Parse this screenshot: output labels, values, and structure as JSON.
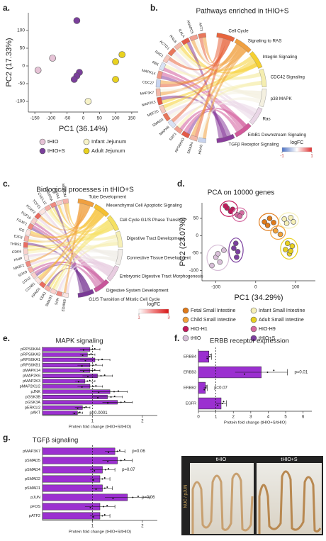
{
  "chart_data": [
    {
      "type": "scatter",
      "panel": "a.",
      "xlabel": "PC1 (36.14%)",
      "ylabel": "PC2 (17.33%)",
      "xlim": [
        -170,
        170
      ],
      "ylim": [
        -130,
        150
      ],
      "xticks": [
        -150,
        -100,
        -50,
        0,
        50,
        100,
        150
      ],
      "yticks": [
        -100,
        -50,
        0,
        50,
        100
      ],
      "series": [
        {
          "name": "tHIO",
          "color": "#e6c3d6",
          "x": [
            -140,
            -95
          ],
          "y": [
            -12,
            22
          ]
        },
        {
          "name": "Infant Jejunum",
          "color": "#f7f3c8",
          "x": [
            15
          ],
          "y": [
            -100
          ]
        },
        {
          "name": "tHIO+S",
          "color": "#7a3f9b",
          "x": [
            -20,
            -12,
            -20,
            -28
          ],
          "y": [
            128,
            -18,
            -28,
            -38
          ]
        },
        {
          "name": "Adult Jejunum",
          "color": "#e9d21f",
          "x": [
            120,
            100,
            100
          ],
          "y": [
            32,
            12,
            -38
          ]
        }
      ]
    },
    {
      "type": "chord",
      "panel": "b.",
      "title": "Pathways enriched in tHIO+S",
      "genes": [
        "AKT3",
        "ANAPC5",
        "RALA",
        "RALB",
        "ACTG1",
        "RAC1",
        "RB1",
        "MAPK14",
        "CDC27",
        "MAP3K7",
        "MAP2K3",
        "MEF2C",
        "SMAD3",
        "MAPK8",
        "RAF1",
        "RPS6KA3",
        "SMAD4",
        "HRAS"
      ],
      "gene_colors": [
        "#e8765a",
        "#f0a090",
        "#e45a48",
        "#f3b8a8",
        "#e8765a",
        "#f6c8bc",
        "#d9e2f4",
        "#ef9a86",
        "#c8d4ef",
        "#f3b8a8",
        "#e45a48",
        "#f6c8bc",
        "#e8765a",
        "#d9e2f4",
        "#f0a090",
        "#e45a48",
        "#f3b8a8",
        "#c8d4ef"
      ],
      "pathways": [
        "Cell Cycle",
        "Signaling to RAS",
        "Integrin Signaling",
        "CDC42 Signaling",
        "p38 MAPK",
        "Ras",
        "ErbB1 Downstream Signaling",
        "TGFβ Receptor Signaling"
      ],
      "pathway_colors": [
        "#e8643c",
        "#f0a040",
        "#f5d030",
        "#f5eeb0",
        "#f4f0e0",
        "#e9d6e6",
        "#d25a9a",
        "#8a3e9c"
      ],
      "legend": {
        "title": "logFC",
        "ticks": [
          -1,
          1
        ],
        "colors": [
          "#4f73c4",
          "#ffffff",
          "#e03030"
        ]
      }
    },
    {
      "type": "chord",
      "panel": "c.",
      "title": "Biological processes in tHIO+S",
      "genes": [
        "MECOM",
        "GATA4",
        "PDGFRA",
        "CXCL12",
        "TCF21",
        "FOXF2",
        "FGF10",
        "FOXF1",
        "ID2",
        "E2F8",
        "THBS1",
        "CDK6",
        "HHIP",
        "NR2F2",
        "SOX9",
        "CDX2",
        "CCNB1",
        "HAND1",
        "CDK1",
        "SMAD3",
        "SHH",
        "EDNRB"
      ],
      "gene_colors": [
        "#f5b0a8",
        "#f8d0cc",
        "#ee8a80",
        "#f5b0a8",
        "#fbe4e1",
        "#e96b60",
        "#f8d0cc",
        "#ee8a80",
        "#fbe4e1",
        "#f5b0a8",
        "#e96b60",
        "#f8d0cc",
        "#fbe4e1",
        "#ee8a80",
        "#f5b0a8",
        "#f8d0cc",
        "#fbe4e1",
        "#e96b60",
        "#f5b0a8",
        "#f8d0cc",
        "#ee8a80",
        "#fbe4e1"
      ],
      "pathways": [
        "Tube Development",
        "Mesenchymal Cell Apoptotic Signaling",
        "Cell Cycle G1/S Phase Transition",
        "Digestive Tract Development",
        "Connective Tissue Development",
        "Embryonic Digestive Tract Morphogenesis",
        "Digestive System Development",
        "G1/S Transition of Mitotic Cell Cycle"
      ],
      "pathway_colors": [
        "#f0a040",
        "#f5c030",
        "#f5e060",
        "#f6efb5",
        "#f0ece8",
        "#e8cce0",
        "#c8559a",
        "#7a3a96"
      ],
      "legend": {
        "title": "logFC",
        "ticks": [
          1,
          3
        ],
        "colors": [
          "#ffffff",
          "#f08080",
          "#d81818"
        ]
      }
    },
    {
      "type": "scatter",
      "panel": "d.",
      "title": "PCA on 10000 genes",
      "xlabel": "PC1 (34.29%)",
      "ylabel": "PC2 (23.07%)",
      "ellipses": true,
      "xlim": [
        -135,
        150
      ],
      "ylim": [
        -130,
        95
      ],
      "xticks": [
        -100,
        0,
        100
      ],
      "yticks": [
        -100,
        -50,
        0,
        50
      ],
      "series": [
        {
          "name": "Fetal Small Intestine",
          "color": "#e07b1a",
          "x": [
            22,
            35,
            30,
            45
          ],
          "y": [
            40,
            50,
            30,
            38
          ]
        },
        {
          "name": "Infant Small Intestine",
          "color": "#f6f0b8",
          "x": [
            72,
            88,
            78,
            95
          ],
          "y": [
            48,
            52,
            36,
            40
          ]
        },
        {
          "name": "Child Small Intestine",
          "color": "#f2a23a",
          "x": [
            50,
            62
          ],
          "y": [
            14,
            4
          ]
        },
        {
          "name": "Adult Small Intestine",
          "color": "#e8d020",
          "x": [
            75,
            85,
            92,
            80,
            88
          ],
          "y": [
            -40,
            -52,
            -30,
            -22,
            -44
          ]
        },
        {
          "name": "HIO-H1",
          "color": "#c2185b",
          "x": [
            -72,
            -58,
            -63,
            -76
          ],
          "y": [
            80,
            76,
            70,
            86
          ]
        },
        {
          "name": "HIO-H9",
          "color": "#d46aa0",
          "x": [
            -35,
            -46,
            -40
          ],
          "y": [
            66,
            60,
            56
          ]
        },
        {
          "name": "tHIO",
          "color": "#d8bfd8",
          "x": [
            -110,
            -100,
            -90,
            -80,
            -95
          ],
          "y": [
            -86,
            -62,
            -76,
            -42,
            -52
          ]
        },
        {
          "name": "tHIO+S",
          "color": "#7b3f9e",
          "x": [
            -45,
            -50,
            -55,
            -48
          ],
          "y": [
            -46,
            -22,
            -36,
            -62
          ]
        }
      ]
    },
    {
      "type": "hbar",
      "panel": "e.",
      "title": "MAPK signaling",
      "xlabel": "Protein fold change (tHIO+S/tHIO)",
      "color": "#9b30d0",
      "xlim": [
        0,
        2.3
      ],
      "xticks": [
        1,
        2
      ],
      "reference_line": 1,
      "categories": [
        "pRPS6KA4",
        "pRPS6KA3",
        "pRPS6KA1",
        "pRPS6KB1",
        "pMAPK14",
        "pMAP2K6",
        "pMAP2K3",
        "pMAP2K1/2",
        "pJNK",
        "pGSK3B",
        "pGSK3A",
        "pERK1/2",
        "pAKT"
      ],
      "values": [
        0.95,
        0.9,
        1.05,
        0.95,
        0.95,
        1.1,
        0.85,
        0.95,
        1.35,
        1.3,
        1.5,
        0.8,
        0.7
      ],
      "errors": [
        0.2,
        0.15,
        0.3,
        0.25,
        0.2,
        0.3,
        0.2,
        0.25,
        0.35,
        0.3,
        0.3,
        0.15,
        0.1
      ],
      "annotations": [
        {
          "category": "pAKT",
          "text": "p<0.0001"
        }
      ]
    },
    {
      "type": "hbar",
      "panel": "f.",
      "title": "ERBB receptor expression",
      "xlabel": "Protein fold change (tHIO+S/tHIO)",
      "color": "#9b30d0",
      "xlim": [
        0,
        6.5
      ],
      "xticks": [
        0,
        1,
        2,
        3,
        4,
        5,
        6
      ],
      "reference_line": 1,
      "categories": [
        "ERBB4",
        "ERBB3",
        "ERBB2",
        "EGFR"
      ],
      "values": [
        0.6,
        3.6,
        0.4,
        1.3
      ],
      "errors": [
        0.15,
        1.5,
        0.1,
        0.3
      ],
      "annotations": [
        {
          "category": "ERBB3",
          "text": "p=0.01"
        },
        {
          "category": "ERBB2",
          "text": "p=0.07"
        }
      ]
    },
    {
      "type": "hbar",
      "panel": "g.",
      "title": "TGFβ signaling",
      "xlabel": "Protein fold change (tHIO+S/tHIO)",
      "color": "#9b30d0",
      "xlim": [
        0,
        2.3
      ],
      "xticks": [
        1,
        2
      ],
      "reference_line": 1,
      "categories": [
        "pMAP3K7",
        "pSMAD5",
        "pSMAD4",
        "pSMAD2",
        "pSMAD1",
        "pJUN",
        "pFOS",
        "pATF2"
      ],
      "values": [
        1.45,
        1.5,
        1.2,
        1.15,
        1.2,
        1.7,
        1.15,
        1.15
      ],
      "errors": [
        0.2,
        0.3,
        0.25,
        0.2,
        0.2,
        0.45,
        0.3,
        0.2
      ],
      "annotations": [
        {
          "category": "pMAP3K7",
          "text": "p=0.06"
        },
        {
          "category": "pSMAD4",
          "text": "p=0.07"
        },
        {
          "category": "pJUN",
          "text": "p=0.06"
        }
      ]
    }
  ],
  "micrograph": {
    "labels": [
      "tHIO",
      "tHIO+S"
    ],
    "stain": "NUC / pJUN"
  }
}
